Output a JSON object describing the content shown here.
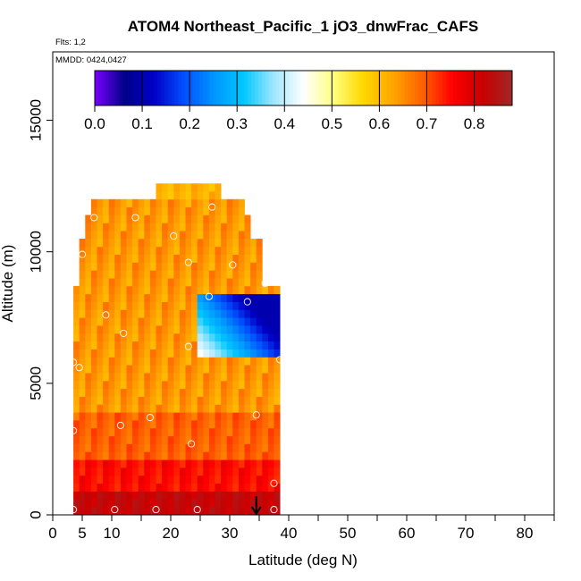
{
  "chart_data": {
    "type": "heatmap",
    "title": "ATOM4 Northeast_Pacific_1 jO3_dnwFrac_CAFS",
    "annotations": {
      "flights": "Flts: 1,2",
      "dates": "MMDD: 0424,0427"
    },
    "xlabel": "Latitude (deg N)",
    "ylabel": "Altitude (m)",
    "xlim": [
      0,
      85
    ],
    "ylim": [
      0,
      17600
    ],
    "x_ticks": [
      0,
      5,
      10,
      20,
      30,
      40,
      50,
      60,
      70,
      80
    ],
    "x_minor_ticks": [
      15,
      25,
      35,
      45,
      55,
      65,
      75,
      85
    ],
    "y_ticks": [
      0,
      5000,
      10000,
      15000
    ],
    "colorbar": {
      "min": 0.0,
      "max": 0.88,
      "ticks": [
        "0.0",
        "0.1",
        "0.2",
        "0.3",
        "0.4",
        "0.5",
        "0.6",
        "0.7",
        "0.8"
      ],
      "colors": [
        "#7b00ff",
        "#00008a",
        "#0000c8",
        "#0050ff",
        "#0096ff",
        "#00c8ff",
        "#a0e6ff",
        "#ffffff",
        "#ffff80",
        "#ffd800",
        "#ffa500",
        "#ff6000",
        "#ff0000",
        "#c80000",
        "#a02828"
      ]
    },
    "field": {
      "lat_range": [
        3.5,
        38.5
      ],
      "alt_range": [
        0,
        12500
      ],
      "data_ranges": [
        {
          "alt_from": 0,
          "alt_to": 800,
          "lat_from": 3.5,
          "lat_to": 38,
          "value_range": [
            0.8,
            0.85
          ]
        },
        {
          "alt_from": 800,
          "alt_to": 2000,
          "lat_from": 3.5,
          "lat_to": 38,
          "value_range": [
            0.72,
            0.78
          ]
        },
        {
          "alt_from": 2000,
          "alt_to": 4000,
          "lat_from": 3.5,
          "lat_to": 38,
          "value_range": [
            0.66,
            0.72
          ]
        },
        {
          "alt_from": 4000,
          "alt_to": 11900,
          "lat_from": 3.5,
          "lat_to": 38,
          "value_range": [
            0.6,
            0.68
          ]
        },
        {
          "alt_from": 11400,
          "alt_to": 12500,
          "lat_from": 7,
          "lat_to": 32,
          "value_range": [
            0.58,
            0.64
          ]
        }
      ],
      "low_value_region": {
        "lat_range": [
          25,
          38
        ],
        "alt_range": [
          6000,
          8500
        ],
        "value_range": [
          0.1,
          0.45
        ]
      }
    },
    "flight_track_points": [
      [
        3.5,
        200
      ],
      [
        10.5,
        200
      ],
      [
        17.5,
        200
      ],
      [
        24.5,
        200
      ],
      [
        37.5,
        200
      ],
      [
        37.5,
        1200
      ],
      [
        3.5,
        3200
      ],
      [
        11.5,
        3400
      ],
      [
        23.5,
        2700
      ],
      [
        16.5,
        3700
      ],
      [
        34.5,
        3800
      ],
      [
        4.5,
        5600
      ],
      [
        3.5,
        5800
      ],
      [
        38.5,
        5900
      ],
      [
        23,
        6400
      ],
      [
        12,
        6900
      ],
      [
        9,
        7600
      ],
      [
        26.5,
        8300
      ],
      [
        33,
        8100
      ],
      [
        36,
        8800
      ],
      [
        23,
        9600
      ],
      [
        30.5,
        9500
      ],
      [
        5,
        9900
      ],
      [
        20.5,
        10600
      ],
      [
        7,
        11300
      ],
      [
        14,
        11300
      ],
      [
        27,
        11700
      ]
    ],
    "marker": {
      "type": "arrow",
      "latitude": 34.5
    }
  }
}
